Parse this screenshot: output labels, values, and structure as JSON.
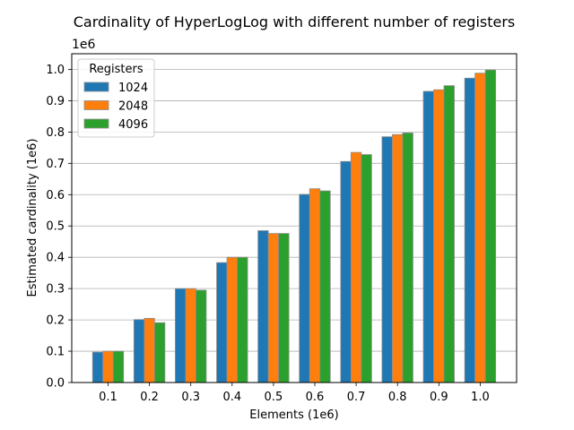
{
  "chart_data": {
    "type": "bar",
    "title": "Cardinality of HyperLogLog with different number of registers",
    "xlabel": "Elements (1e6)",
    "ylabel": "Estimated cardinality (1e6)",
    "y_offset_label": "1e6",
    "categories": [
      "0.1",
      "0.2",
      "0.3",
      "0.4",
      "0.5",
      "0.6",
      "0.7",
      "0.8",
      "0.9",
      "1.0"
    ],
    "y_ticks": [
      "0.0",
      "0.1",
      "0.2",
      "0.3",
      "0.4",
      "0.5",
      "0.6",
      "0.7",
      "0.8",
      "0.9",
      "1.0"
    ],
    "ylim": [
      0,
      1.05
    ],
    "grid": "y",
    "legend": {
      "title": "Registers",
      "placement": "top-left"
    },
    "series": [
      {
        "name": "1024",
        "color": "#1f77b4",
        "values": [
          0.097,
          0.201,
          0.3,
          0.383,
          0.485,
          0.601,
          0.706,
          0.785,
          0.93,
          0.972
        ]
      },
      {
        "name": "2048",
        "color": "#ff7f0e",
        "values": [
          0.1,
          0.205,
          0.3,
          0.4,
          0.476,
          0.619,
          0.735,
          0.792,
          0.935,
          0.988
        ]
      },
      {
        "name": "4096",
        "color": "#2ca02c",
        "values": [
          0.1,
          0.191,
          0.295,
          0.4,
          0.476,
          0.612,
          0.728,
          0.797,
          0.948,
          0.998
        ]
      }
    ]
  }
}
